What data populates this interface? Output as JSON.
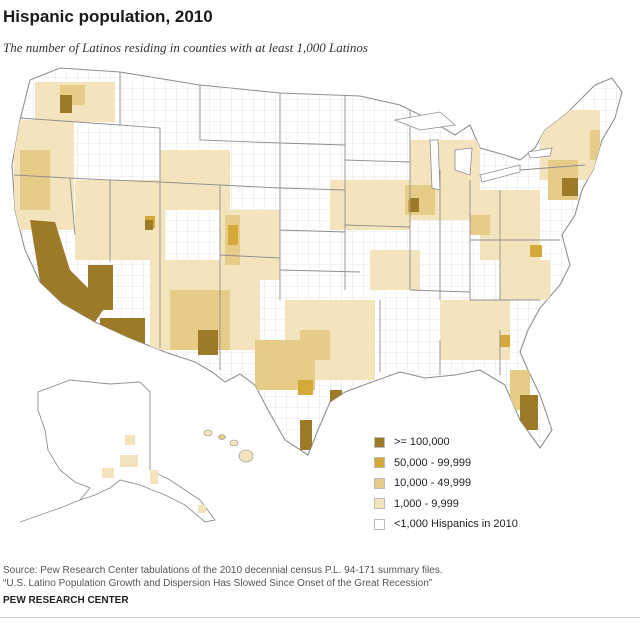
{
  "title": "Hispanic population, 2010",
  "subtitle": "The number of Latinos residing in counties with at least 1,000 Latinos",
  "legend": {
    "items": [
      {
        "label": ">= 100,000",
        "color": "#9c7a27"
      },
      {
        "label": "50,000 - 99,999",
        "color": "#d4a93a"
      },
      {
        "label": "10,000 - 49,999",
        "color": "#e6cc86"
      },
      {
        "label": "1,000 - 9,999",
        "color": "#f3e4bd"
      },
      {
        "label": "<1,000 Hispanics in 2010",
        "color": "#ffffff"
      }
    ]
  },
  "source": {
    "line1": "Source: Pew Research Center tabulations of the 2010 decennial census P.L. 94-171 summary files.",
    "line2": "“U.S. Latino Population Growth and Dispersion Has Slowed Since Onset of the Great Recession”"
  },
  "brand": "PEW RESEARCH CENTER",
  "map_style": {
    "land": "#ffffff",
    "county_border": "#d4d4d4",
    "state_border": "#8f8f8f"
  }
}
